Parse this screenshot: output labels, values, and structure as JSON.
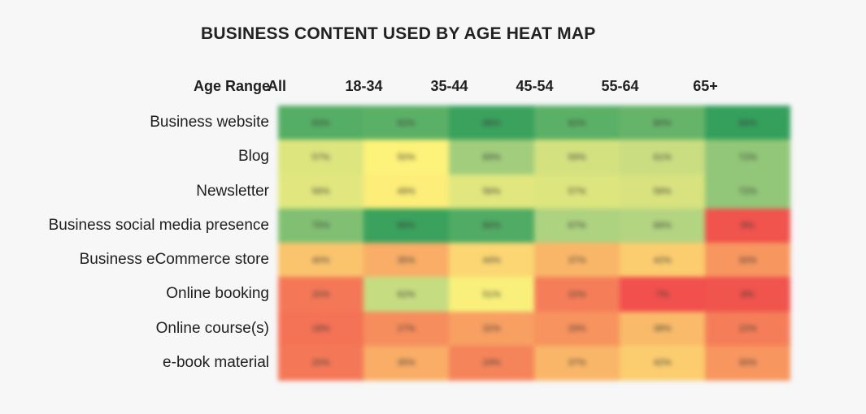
{
  "chart_data": {
    "type": "heatmap",
    "title": "BUSINESS CONTENT USED BY AGE HEAT MAP",
    "corner_label": "Age Range",
    "columns": [
      "All",
      "18-34",
      "35-44",
      "45-54",
      "55-64",
      "65+"
    ],
    "rows": [
      "Business  website",
      "Blog",
      "Newsletter",
      "Business social  media presence",
      "Business eCommerce store",
      "Online booking",
      "Online course(s)",
      "e-book material"
    ],
    "values": [
      [
        83,
        82,
        88,
        82,
        80,
        89
      ],
      [
        57,
        50,
        69,
        59,
        61,
        72
      ],
      [
        56,
        49,
        56,
        57,
        58,
        72
      ],
      [
        75,
        88,
        84,
        67,
        66,
        8
      ],
      [
        40,
        35,
        44,
        37,
        42,
        30
      ],
      [
        20,
        62,
        51,
        22,
        7,
        8
      ],
      [
        18,
        27,
        32,
        29,
        38,
        22
      ],
      [
        20,
        35,
        24,
        37,
        42,
        30
      ]
    ],
    "value_suffix": "%",
    "color_scale": {
      "low": "#ef3b47",
      "mid_low": "#f7b36a",
      "mid": "#fdf27a",
      "mid_high": "#b8d683",
      "high": "#2f9e5a"
    }
  }
}
